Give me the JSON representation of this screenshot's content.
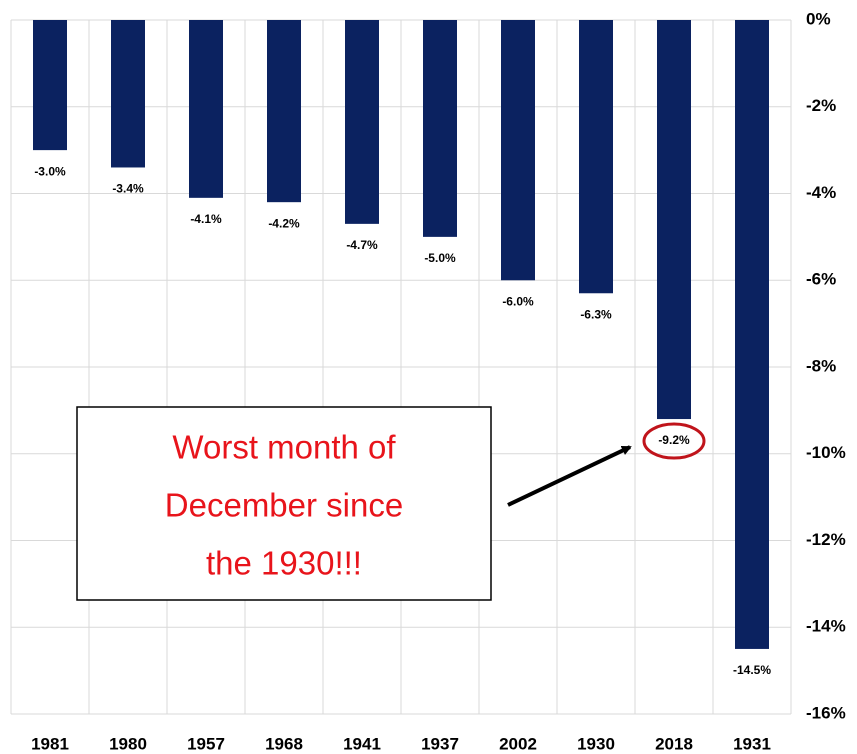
{
  "chart_data": {
    "type": "bar",
    "categories": [
      "1981",
      "1980",
      "1957",
      "1968",
      "1941",
      "1937",
      "2002",
      "1930",
      "2018",
      "1931"
    ],
    "values": [
      -3.0,
      -3.4,
      -4.1,
      -4.2,
      -4.7,
      -5.0,
      -6.0,
      -6.3,
      -9.2,
      -14.5
    ],
    "value_labels": [
      "-3.0%",
      "-3.4%",
      "-4.1%",
      "-4.2%",
      "-4.7%",
      "-5.0%",
      "-6.0%",
      "-6.3%",
      "-9.2%",
      "-14.5%"
    ],
    "color": "#0b2260",
    "ylim": [
      -16,
      0
    ],
    "yticks": [
      {
        "value": 0,
        "label": "0%"
      },
      {
        "value": -2,
        "label": "-2%"
      },
      {
        "value": -4,
        "label": "-4%"
      },
      {
        "value": -6,
        "label": "-6%"
      },
      {
        "value": -8,
        "label": "-8%"
      },
      {
        "value": -10,
        "label": "-10%"
      },
      {
        "value": -12,
        "label": "-12%"
      },
      {
        "value": -14,
        "label": "-14%"
      },
      {
        "value": -16,
        "label": "-16%"
      }
    ],
    "y_axis_side": "right",
    "grid": true,
    "annotation": [
      "Worst month of",
      "December since",
      "the 1930!!!"
    ]
  }
}
